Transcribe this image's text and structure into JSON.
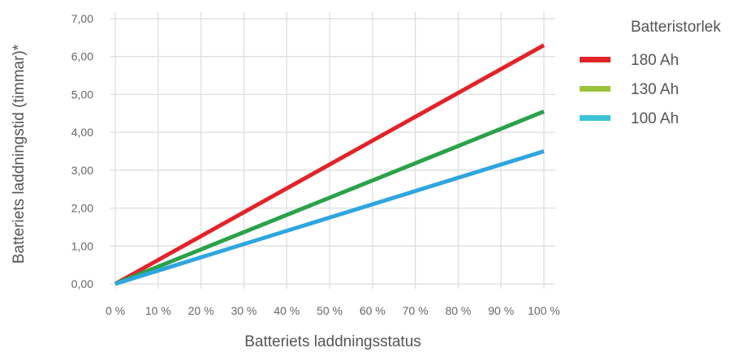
{
  "chart_data": {
    "type": "line",
    "xlabel": "Batteriets laddningsstatus",
    "ylabel": "Batteriets laddningstid (timmar)*",
    "x": [
      0,
      100
    ],
    "x_ticks": [
      "0 %",
      "10 %",
      "20 %",
      "30 %",
      "40 %",
      "50 %",
      "60 %",
      "70 %",
      "80 %",
      "90 %",
      "100 %"
    ],
    "y_ticks": [
      "0,00",
      "1,00",
      "2,00",
      "3,00",
      "4,00",
      "5,00",
      "6,00",
      "7,00"
    ],
    "xlim": [
      0,
      100
    ],
    "ylim": [
      0,
      7
    ],
    "grid": true,
    "legend_title": "Batteristorlek",
    "legend_position": "right",
    "series": [
      {
        "name": "180 Ah",
        "values": [
          0,
          6.3
        ],
        "color": "#e2232a"
      },
      {
        "name": "130 Ah",
        "values": [
          0,
          4.55
        ],
        "color": "#2aa24b",
        "legend_color": "#9ac43b"
      },
      {
        "name": "100 Ah",
        "values": [
          0,
          3.5
        ],
        "color": "#2fa6df",
        "legend_color": "#3cc3d8"
      }
    ]
  }
}
